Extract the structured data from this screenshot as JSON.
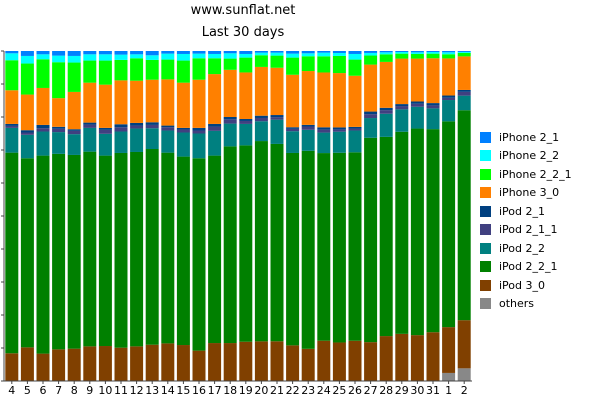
{
  "chart_data": {
    "type": "bar",
    "stacked": true,
    "normalized": true,
    "title": "www.sunflat.net",
    "subtitle": "Last 30 days",
    "categories": [
      "4",
      "5",
      "6",
      "7",
      "8",
      "9",
      "10",
      "11",
      "12",
      "13",
      "14",
      "15",
      "16",
      "17",
      "18",
      "19",
      "20",
      "21",
      "22",
      "23",
      "24",
      "25",
      "26",
      "27",
      "28",
      "29",
      "30",
      "31",
      "1",
      "2"
    ],
    "ylim": [
      0,
      100
    ],
    "grid": false,
    "legend_position": "right",
    "series": [
      {
        "name": "others",
        "color": "#888888",
        "values": [
          0,
          0,
          0,
          0,
          0,
          0,
          0,
          0,
          0,
          0,
          0,
          0,
          0,
          0,
          0,
          0,
          0,
          0,
          0,
          0,
          0,
          0,
          0,
          0,
          0,
          0,
          0,
          0,
          2.5,
          4.0
        ]
      },
      {
        "name": "iPod 3_0",
        "color": "#804000",
        "values": [
          8.4,
          10.2,
          8.3,
          9.6,
          9.8,
          10.5,
          10.6,
          10.1,
          10.5,
          11.0,
          11.4,
          10.9,
          9.2,
          11.5,
          11.5,
          11.9,
          12.2,
          12.1,
          10.8,
          9.8,
          12.2,
          11.7,
          12.2,
          12.0,
          13.6,
          14.3,
          13.9,
          14.8,
          14.2,
          15.2
        ]
      },
      {
        "name": "iPod 2_2_1",
        "color": "#008000",
        "values": [
          60.8,
          57.3,
          60.0,
          59.3,
          58.7,
          59.0,
          57.7,
          59.0,
          58.9,
          59.3,
          57.8,
          57.1,
          58.3,
          56.8,
          59.6,
          59.5,
          61.6,
          60.1,
          58.3,
          60.3,
          56.8,
          57.6,
          57.1,
          63.1,
          60.3,
          61.3,
          62.6,
          61.6,
          63.8,
          66.3
        ]
      },
      {
        "name": "iPod 2_2",
        "color": "#008080",
        "values": [
          7.5,
          7.1,
          7.3,
          6.6,
          6.3,
          7.2,
          6.6,
          6.5,
          7.1,
          6.3,
          6.7,
          7.3,
          7.5,
          7.5,
          6.9,
          6.5,
          6.1,
          7.4,
          6.6,
          6.4,
          6.2,
          6.4,
          6.6,
          6.1,
          7.0,
          6.8,
          6.6,
          6.3,
          6.6,
          4.6
        ]
      },
      {
        "name": "iPod 2_1_1",
        "color": "#404080",
        "values": [
          0.6,
          0.7,
          1.0,
          1.0,
          1.0,
          1.0,
          1.2,
          1.3,
          0.9,
          1.0,
          1.0,
          0.9,
          0.9,
          1.3,
          1.3,
          0.9,
          1.0,
          0.7,
          0.7,
          1.0,
          0.9,
          0.7,
          0.6,
          1.2,
          1.1,
          1.0,
          0.9,
          0.9,
          0.7,
          1.2
        ]
      },
      {
        "name": "iPod 2_1",
        "color": "#004080",
        "values": [
          0.6,
          0.7,
          1.0,
          0.6,
          0.5,
          0.6,
          0.6,
          0.9,
          0.8,
          0.8,
          0.5,
          0.5,
          0.8,
          0.8,
          0.7,
          0.6,
          0.7,
          0.7,
          0.5,
          0.5,
          0.7,
          0.6,
          0.5,
          0.8,
          0.7,
          0.6,
          0.7,
          0.7,
          0.7,
          0.6
        ]
      },
      {
        "name": "iPhone 3_0",
        "color": "#ff8000",
        "values": [
          10.2,
          10.8,
          11.2,
          8.7,
          11.3,
          12.1,
          13.1,
          13.3,
          12.8,
          12.9,
          14.0,
          13.7,
          14.6,
          15.1,
          14.3,
          14.1,
          15.0,
          14.4,
          15.9,
          16.4,
          16.6,
          16.5,
          15.5,
          14.5,
          13.9,
          13.8,
          13.0,
          13.6,
          11.5,
          10.6
        ]
      },
      {
        "name": "iPhone 2_2_1",
        "color": "#00ff00",
        "values": [
          9.1,
          9.4,
          8.7,
          10.9,
          8.9,
          6.7,
          7.3,
          6.2,
          6.8,
          6.0,
          6.0,
          6.7,
          6.5,
          4.8,
          3.4,
          4.5,
          3.6,
          3.7,
          5.2,
          4.5,
          4.9,
          5.2,
          4.9,
          2.8,
          2.3,
          1.5,
          1.4,
          1.4,
          1.3,
          1.1
        ]
      },
      {
        "name": "iPhone 2_2",
        "color": "#00ffff",
        "values": [
          2.1,
          2.3,
          1.5,
          2.0,
          2.0,
          1.9,
          1.9,
          1.6,
          1.2,
          1.4,
          1.8,
          2.0,
          1.4,
          1.3,
          1.6,
          1.1,
          0.8,
          0.9,
          1.2,
          0.9,
          1.1,
          0.9,
          1.7,
          0.8,
          0.6,
          0.5,
          0.5,
          0.5,
          0.6,
          0.3
        ]
      },
      {
        "name": "iPhone 2_1",
        "color": "#0080ff",
        "values": [
          0.7,
          1.5,
          1.0,
          1.4,
          1.5,
          1.0,
          1.0,
          1.1,
          1.0,
          1.3,
          0.8,
          0.9,
          0.8,
          0.9,
          0.7,
          0.9,
          0.5,
          0.5,
          0.8,
          0.7,
          0.5,
          0.6,
          0.9,
          0.6,
          0.4,
          0.3,
          0.4,
          0.3,
          0.4,
          0.3
        ]
      }
    ],
    "legend_order": [
      "iPhone 2_1",
      "iPhone 2_2",
      "iPhone 2_2_1",
      "iPhone 3_0",
      "iPod 2_1",
      "iPod 2_1_1",
      "iPod 2_2",
      "iPod 2_2_1",
      "iPod 3_0",
      "others"
    ]
  }
}
